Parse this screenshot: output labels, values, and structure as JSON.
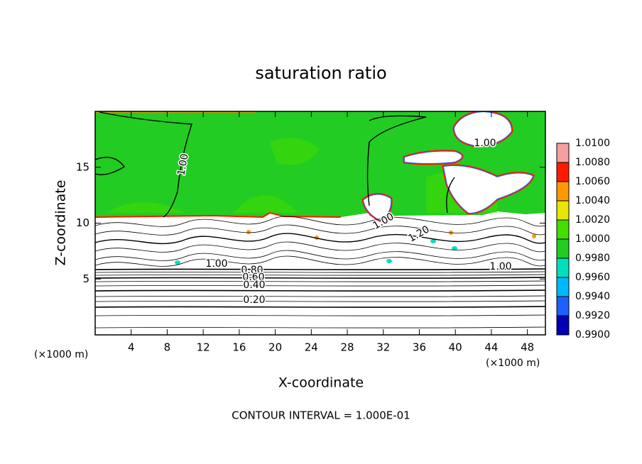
{
  "chart_data": {
    "type": "contour",
    "title": "saturation ratio",
    "x_label": "X-coordinate",
    "y_label": "Z-coordinate",
    "x_unit": "(×1000 m)",
    "y_unit": "(×1000 m)",
    "footer": "CONTOUR INTERVAL = 1.000E-01",
    "xlim": [
      0,
      50
    ],
    "xticks": [
      4,
      8,
      12,
      16,
      20,
      24,
      28,
      32,
      36,
      40,
      44,
      48
    ],
    "ylim": [
      0,
      20
    ],
    "yticks": [
      5,
      10,
      15
    ],
    "contour_labels": [
      "1.00",
      "1.00",
      "1.00",
      "1.20",
      "1.00",
      "0.80",
      "0.60",
      "0.40",
      "0.20",
      "1.00"
    ],
    "colorbar": {
      "ticks": [
        {
          "value": 0.99,
          "label": "0.9900"
        },
        {
          "value": 0.992,
          "label": "0.9920"
        },
        {
          "value": 0.994,
          "label": "0.9940"
        },
        {
          "value": 0.996,
          "label": "0.9960"
        },
        {
          "value": 0.998,
          "label": "0.9980"
        },
        {
          "value": 1.0,
          "label": "1.0000"
        },
        {
          "value": 1.002,
          "label": "1.0020"
        },
        {
          "value": 1.004,
          "label": "1.0040"
        },
        {
          "value": 1.006,
          "label": "1.0060"
        },
        {
          "value": 1.008,
          "label": "1.0080"
        },
        {
          "value": 1.01,
          "label": "1.0100"
        }
      ],
      "colors": [
        "#6a1b9a",
        "#0000b4",
        "#1e60ff",
        "#00b8ff",
        "#00e0c0",
        "#22cc22",
        "#44dd00",
        "#e6e600",
        "#ff9900",
        "#ff1a00",
        "#f4a0a0"
      ]
    }
  }
}
